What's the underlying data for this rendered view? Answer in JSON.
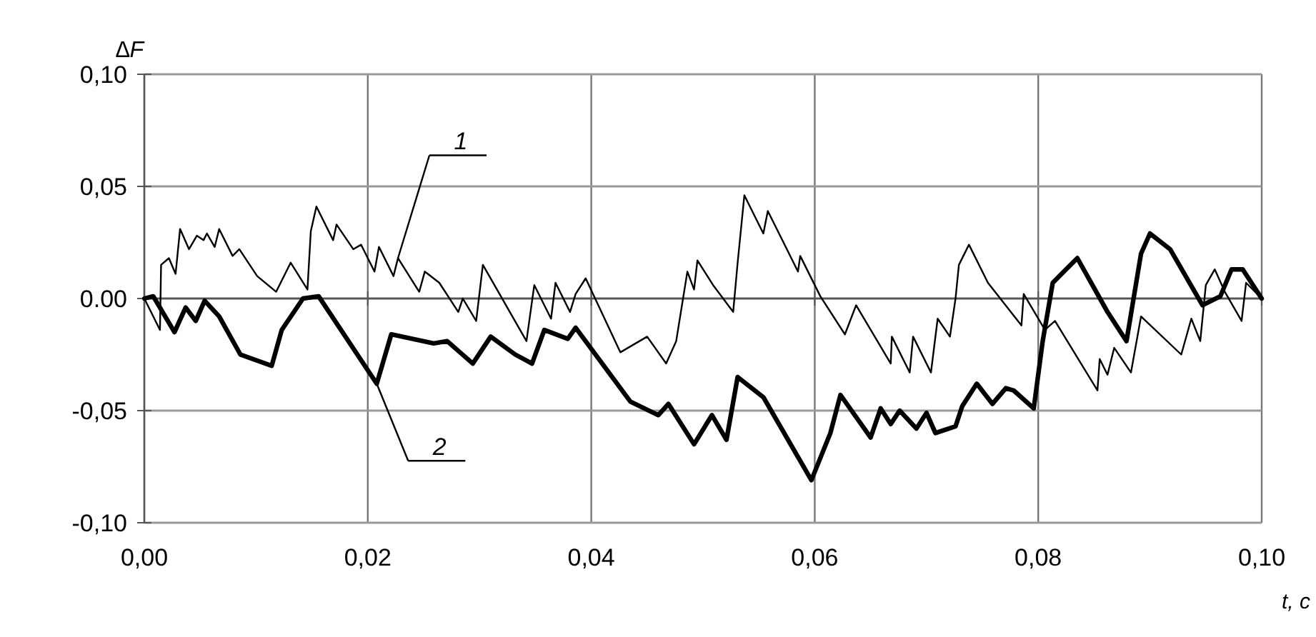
{
  "chart_data": {
    "type": "line",
    "xlabel": "t, с",
    "ylabel": "∆F",
    "xlim": [
      0,
      0.1
    ],
    "ylim": [
      -0.1,
      0.1
    ],
    "xticks": [
      {
        "value": 0,
        "label": "0,00"
      },
      {
        "value": 0.02,
        "label": "0,02"
      },
      {
        "value": 0.04,
        "label": "0,04"
      },
      {
        "value": 0.06,
        "label": "0,06"
      },
      {
        "value": 0.08,
        "label": "0,08"
      },
      {
        "value": 0.1,
        "label": "0,10"
      }
    ],
    "yticks": [
      {
        "value": -0.1,
        "label": "-0,10"
      },
      {
        "value": -0.05,
        "label": "-0,05"
      },
      {
        "value": 0,
        "label": "0.00"
      },
      {
        "value": 0.05,
        "label": "0,05"
      },
      {
        "value": 0.1,
        "label": "0,10"
      }
    ],
    "grid": true,
    "line_style": "solid",
    "marker": "none",
    "annotations": [
      {
        "text": "1",
        "x": 0.0227,
        "y": 0.018
      },
      {
        "text": "2",
        "x": 0.0208,
        "y": -0.038
      }
    ],
    "series": [
      {
        "color": "#000000",
        "x": [
          0,
          0.0014,
          0.0015,
          0.0022,
          0.0028,
          0.0032,
          0.004,
          0.0047,
          0.0053,
          0.0056,
          0.0063,
          0.0067,
          0.0079,
          0.0085,
          0.0101,
          0.0118,
          0.0131,
          0.0146,
          0.0149,
          0.0154,
          0.0169,
          0.0172,
          0.0187,
          0.0194,
          0.0206,
          0.021,
          0.0223,
          0.0227,
          0.0246,
          0.0251,
          0.0264,
          0.0281,
          0.0285,
          0.0297,
          0.0303,
          0.0342,
          0.0349,
          0.0364,
          0.0368,
          0.0381,
          0.0386,
          0.0395,
          0.0426,
          0.045,
          0.0467,
          0.0476,
          0.0486,
          0.0492,
          0.0495,
          0.0509,
          0.0527,
          0.0531,
          0.0537,
          0.0554,
          0.0558,
          0.0585,
          0.0587,
          0.0605,
          0.0627,
          0.0637,
          0.0668,
          0.0669,
          0.0685,
          0.0688,
          0.0704,
          0.071,
          0.0721,
          0.0726,
          0.0729,
          0.0738,
          0.0755,
          0.0785,
          0.0787,
          0.0806,
          0.0815,
          0.0853,
          0.0855,
          0.0862,
          0.0868,
          0.0883,
          0.0892,
          0.0928,
          0.0937,
          0.0945,
          0.095,
          0.0958,
          0.0967,
          0.0982,
          0.0986,
          0.1
        ],
        "values": [
          0,
          -0.014,
          0.015,
          0.018,
          0.011,
          0.031,
          0.022,
          0.028,
          0.026,
          0.029,
          0.023,
          0.031,
          0.019,
          0.022,
          0.01,
          0.003,
          0.016,
          0.004,
          0.03,
          0.041,
          0.026,
          0.033,
          0.022,
          0.024,
          0.012,
          0.023,
          0.01,
          0.018,
          0.003,
          0.012,
          0.007,
          -0.006,
          0,
          -0.01,
          0.015,
          -0.019,
          0.006,
          -0.009,
          0.007,
          -0.006,
          0.002,
          0.009,
          -0.024,
          -0.017,
          -0.029,
          -0.019,
          0.012,
          0.004,
          0.017,
          0.006,
          -0.006,
          0.016,
          0.046,
          0.029,
          0.039,
          0.012,
          0.019,
          0.001,
          -0.016,
          -0.003,
          -0.029,
          -0.017,
          -0.033,
          -0.017,
          -0.033,
          -0.009,
          -0.017,
          0,
          0.015,
          0.024,
          0.007,
          -0.012,
          0.002,
          -0.014,
          -0.01,
          -0.041,
          -0.027,
          -0.034,
          -0.022,
          -0.033,
          -0.008,
          -0.025,
          -0.009,
          -0.019,
          0.006,
          0.013,
          0.003,
          -0.01,
          0.007,
          0
        ]
      },
      {
        "color": "#000000",
        "x": [
          0,
          0.0008,
          0.0027,
          0.0037,
          0.0046,
          0.0054,
          0.0067,
          0.0086,
          0.0114,
          0.0123,
          0.0142,
          0.0156,
          0.0208,
          0.0221,
          0.0259,
          0.0271,
          0.0294,
          0.031,
          0.0332,
          0.0347,
          0.0358,
          0.0379,
          0.0386,
          0.0435,
          0.046,
          0.0469,
          0.0492,
          0.0508,
          0.0521,
          0.0531,
          0.0554,
          0.0597,
          0.0614,
          0.0623,
          0.065,
          0.0659,
          0.0668,
          0.0676,
          0.0691,
          0.07,
          0.0708,
          0.0726,
          0.0732,
          0.0745,
          0.0759,
          0.0771,
          0.0778,
          0.0796,
          0.0804,
          0.0813,
          0.0823,
          0.0835,
          0.0862,
          0.0879,
          0.0892,
          0.09,
          0.0918,
          0.0947,
          0.0963,
          0.0973,
          0.0983,
          0.1
        ],
        "values": [
          0,
          0.001,
          -0.015,
          -0.004,
          -0.01,
          -0.001,
          -0.008,
          -0.025,
          -0.03,
          -0.014,
          0,
          0.001,
          -0.038,
          -0.016,
          -0.02,
          -0.019,
          -0.029,
          -0.017,
          -0.025,
          -0.029,
          -0.014,
          -0.018,
          -0.013,
          -0.046,
          -0.052,
          -0.047,
          -0.065,
          -0.052,
          -0.063,
          -0.035,
          -0.044,
          -0.081,
          -0.06,
          -0.043,
          -0.062,
          -0.049,
          -0.056,
          -0.05,
          -0.058,
          -0.051,
          -0.06,
          -0.057,
          -0.048,
          -0.038,
          -0.047,
          -0.04,
          -0.041,
          -0.049,
          -0.019,
          0.007,
          0.012,
          0.018,
          -0.006,
          -0.019,
          0.02,
          0.029,
          0.022,
          -0.003,
          0.001,
          0.013,
          0.013,
          0
        ]
      }
    ]
  }
}
